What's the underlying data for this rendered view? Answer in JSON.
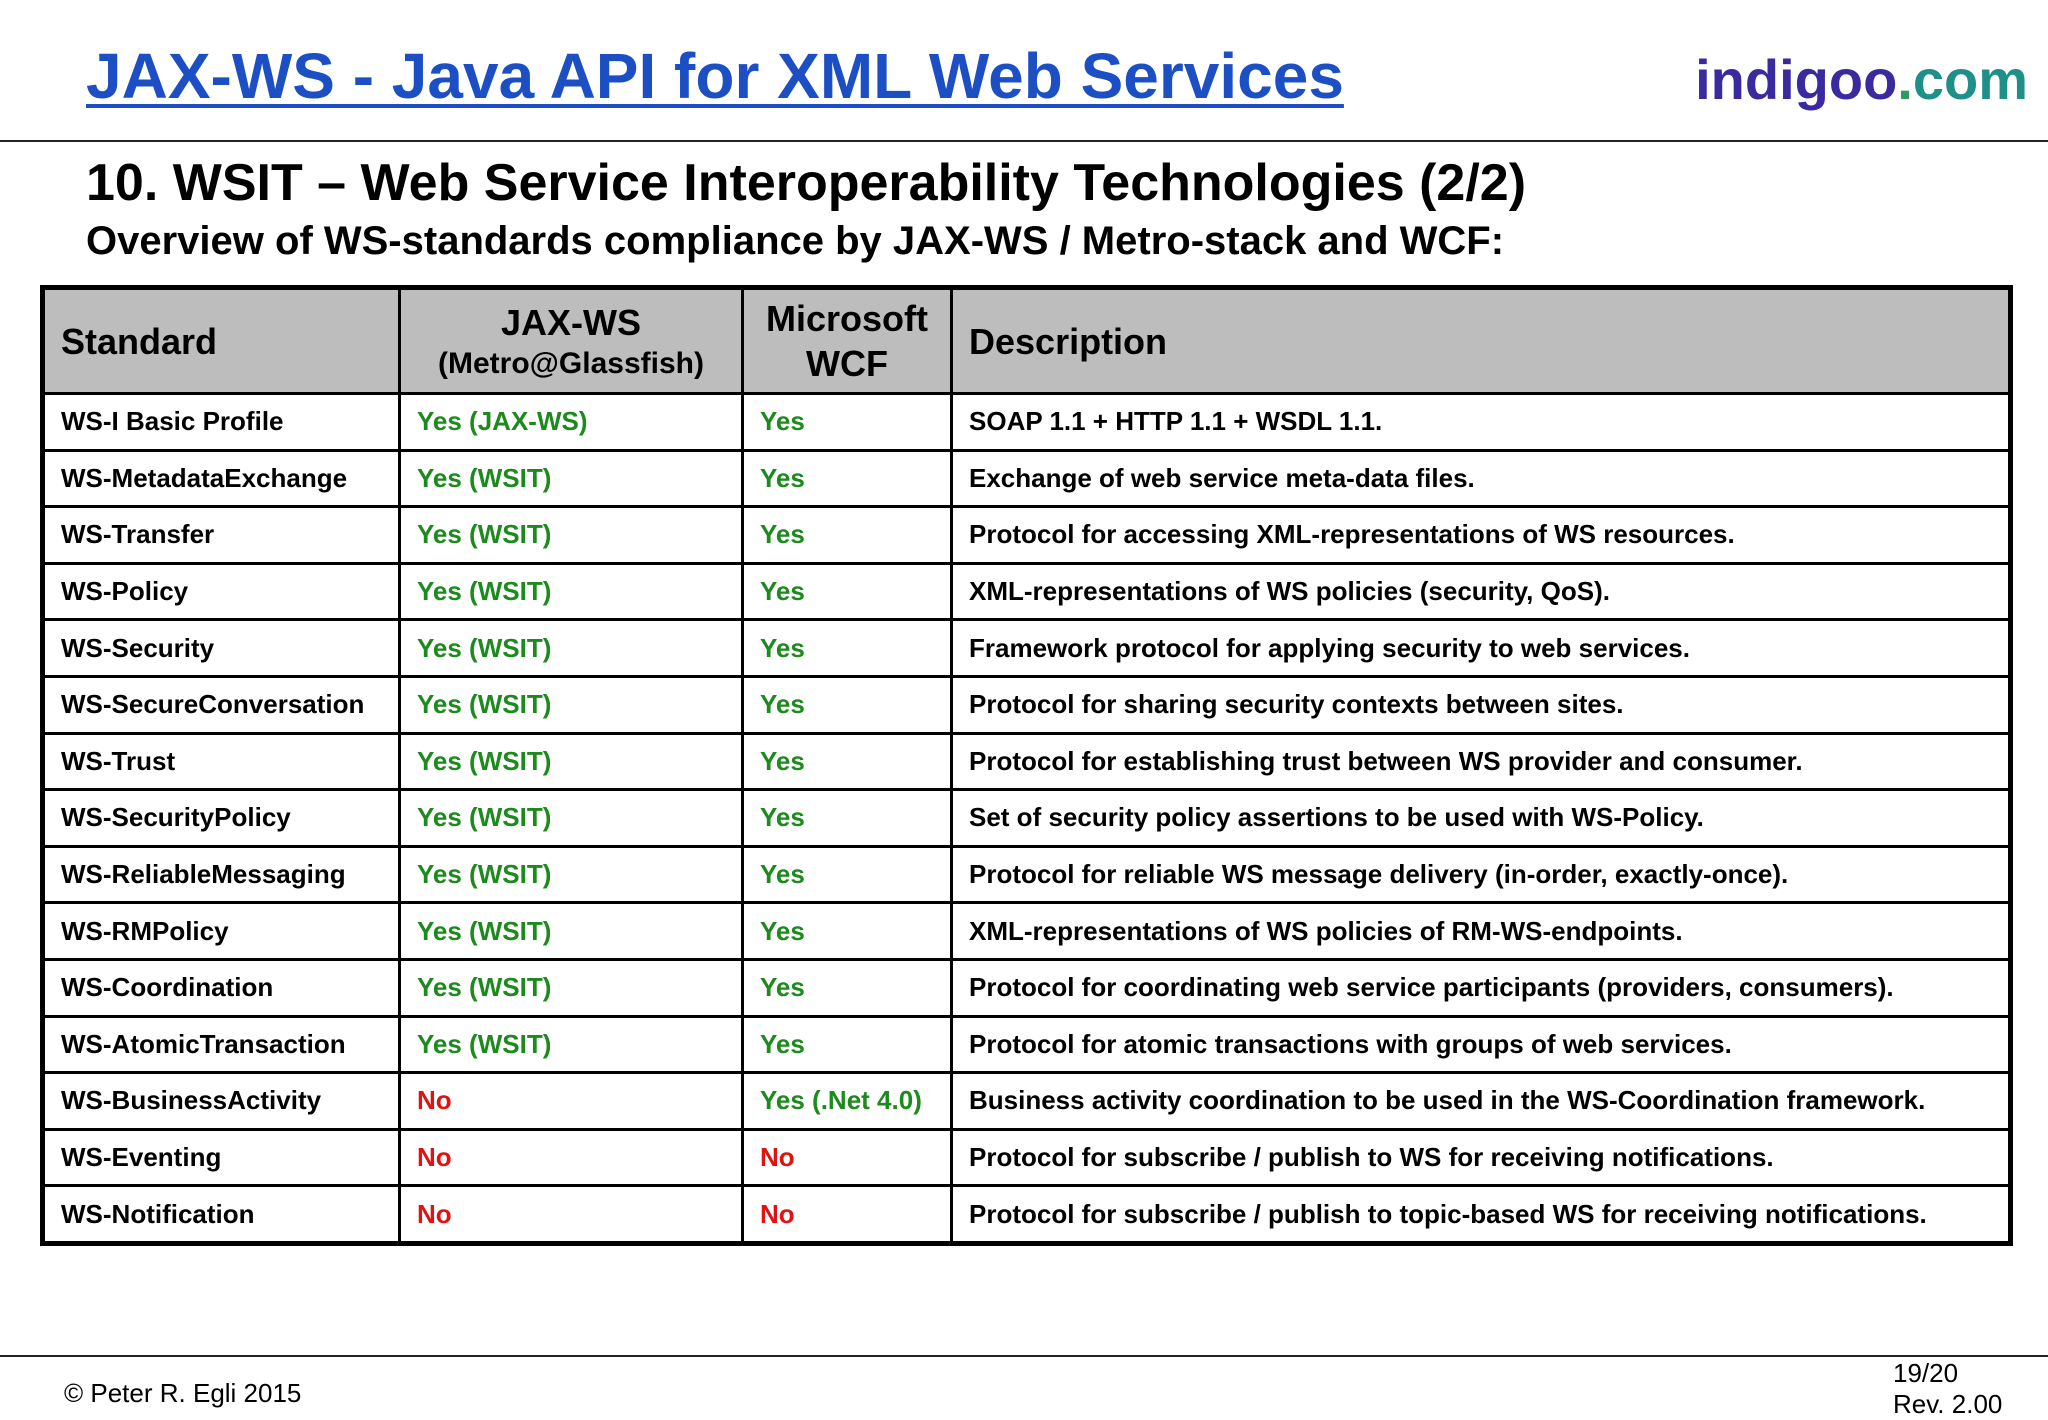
{
  "header": {
    "title": "JAX-WS -  Java API for XML Web Services",
    "brand": {
      "part1": "indigoo",
      "dot": ".",
      "part2": "com"
    }
  },
  "section": {
    "title": "10. WSIT – Web Service Interoperability Technologies (2/2)",
    "subtitle": "Overview of WS-standards compliance by JAX-WS / Metro-stack and WCF:"
  },
  "table": {
    "headers": {
      "standard": "Standard",
      "jaxws_line1": "JAX-WS",
      "jaxws_line2": "(Metro@Glassfish)",
      "wcf_line1": "Microsoft",
      "wcf_line2": "WCF",
      "description": "Description"
    },
    "rows": [
      {
        "standard": "WS-I Basic Profile",
        "jaxws": "Yes (JAX-WS)",
        "wcf": "Yes",
        "description": "SOAP 1.1 + HTTP 1.1  + WSDL 1.1."
      },
      {
        "standard": "WS-MetadataExchange",
        "jaxws": "Yes (WSIT)",
        "wcf": "Yes",
        "description": "Exchange of web service meta-data files."
      },
      {
        "standard": "WS-Transfer",
        "jaxws": "Yes (WSIT)",
        "wcf": "Yes",
        "description": "Protocol for accessing XML-representations of WS resources."
      },
      {
        "standard": "WS-Policy",
        "jaxws": "Yes (WSIT)",
        "wcf": "Yes",
        "description": "XML-representations of WS policies (security, QoS)."
      },
      {
        "standard": "WS-Security",
        "jaxws": "Yes (WSIT)",
        "wcf": "Yes",
        "description": "Framework protocol for applying security to web services."
      },
      {
        "standard": "WS-SecureConversation",
        "jaxws": "Yes (WSIT)",
        "wcf": "Yes",
        "description": "Protocol for sharing security contexts between sites."
      },
      {
        "standard": "WS-Trust",
        "jaxws": "Yes (WSIT)",
        "wcf": "Yes",
        "description": "Protocol for establishing trust between WS provider and consumer."
      },
      {
        "standard": "WS-SecurityPolicy",
        "jaxws": "Yes (WSIT)",
        "wcf": "Yes",
        "description": "Set of security policy assertions to be used with WS-Policy."
      },
      {
        "standard": "WS-ReliableMessaging",
        "jaxws": "Yes (WSIT)",
        "wcf": "Yes",
        "description": "Protocol for reliable WS message delivery (in-order, exactly-once)."
      },
      {
        "standard": "WS-RMPolicy",
        "jaxws": "Yes (WSIT)",
        "wcf": "Yes",
        "description": "XML-representations of WS policies of RM-WS-endpoints."
      },
      {
        "standard": "WS-Coordination",
        "jaxws": "Yes (WSIT)",
        "wcf": "Yes",
        "description": "Protocol for coordinating web service participants (providers, consumers)."
      },
      {
        "standard": "WS-AtomicTransaction",
        "jaxws": "Yes (WSIT)",
        "wcf": "Yes",
        "description": "Protocol for atomic transactions with groups of web services."
      },
      {
        "standard": "WS-BusinessActivity",
        "jaxws": "No",
        "wcf": "Yes (.Net 4.0)",
        "description": "Business activity coordination to be used in the WS-Coordination framework."
      },
      {
        "standard": "WS-Eventing",
        "jaxws": "No",
        "wcf": "No",
        "description": "Protocol for subscribe / publish to WS for receiving notifications."
      },
      {
        "standard": "WS-Notification",
        "jaxws": "No",
        "wcf": "No",
        "description": "Protocol for subscribe / publish to topic-based WS for receiving notifications."
      }
    ]
  },
  "footer": {
    "copyright": "© Peter R. Egli 2015",
    "page": "19/20",
    "revision": "Rev. 2.00"
  },
  "colors": {
    "title_blue": "#1d4fc4",
    "yes_green": "#1c8a1c",
    "no_red": "#e01212",
    "header_gray": "#bdbdbd"
  }
}
